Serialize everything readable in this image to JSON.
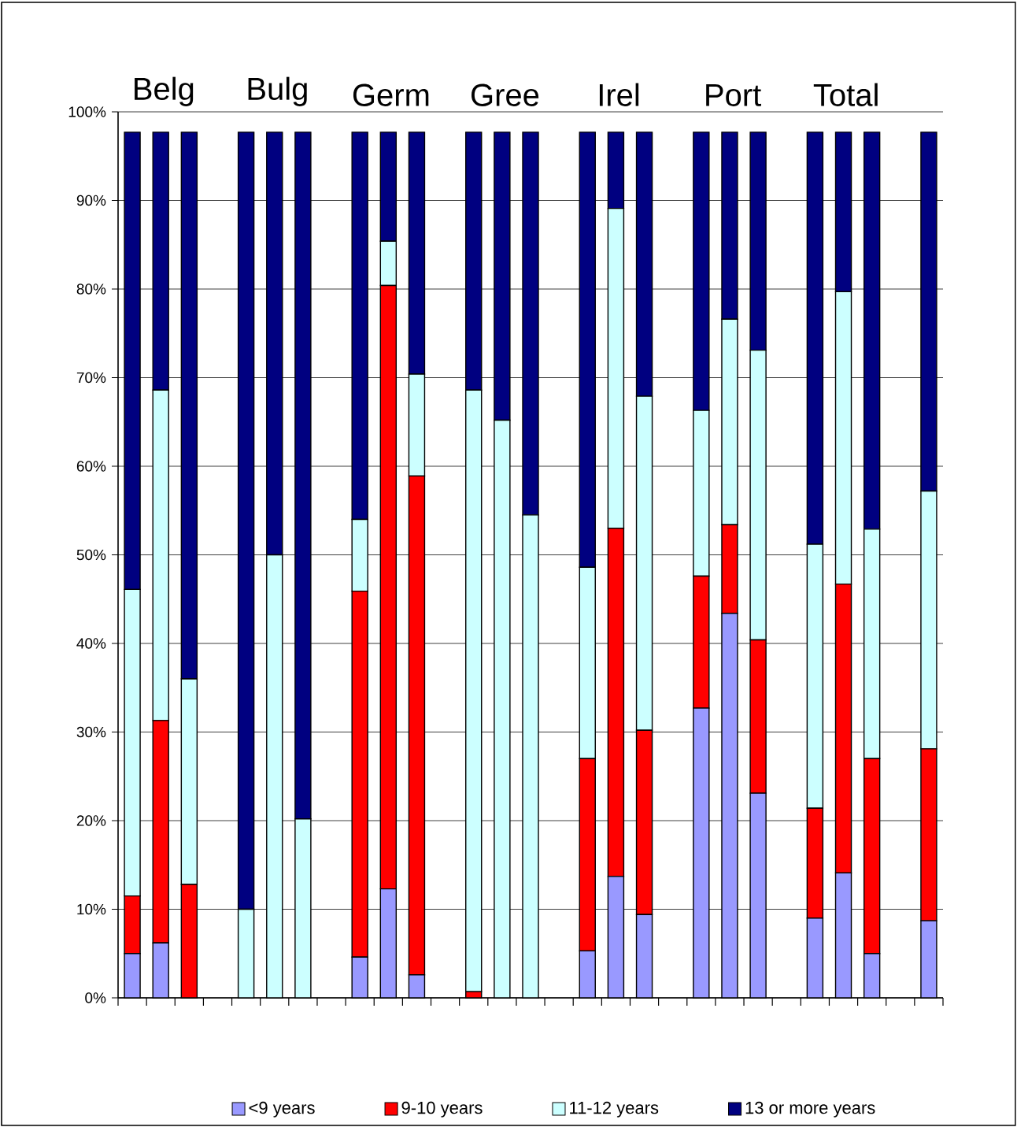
{
  "chart_data": {
    "type": "bar",
    "stacked": true,
    "categories": [
      null,
      null,
      null,
      null,
      null,
      null,
      null,
      null,
      null,
      null,
      null,
      null,
      null,
      null,
      null,
      null,
      null,
      null,
      null,
      null,
      null,
      null,
      null,
      null,
      null,
      null,
      null,
      null,
      null
    ],
    "series": [
      {
        "name": "<9 years",
        "color": "#9999ff",
        "values": [
          5.0,
          6.2,
          0,
          null,
          0,
          0,
          0,
          null,
          4.6,
          12.3,
          2.6,
          null,
          0,
          0,
          0,
          null,
          5.3,
          13.7,
          9.4,
          null,
          32.7,
          43.4,
          23.1,
          null,
          9.0,
          14.1,
          5.0,
          null,
          8.7
        ]
      },
      {
        "name": "9-10 years",
        "color": "#ff0000",
        "values": [
          6.5,
          25.1,
          12.8,
          null,
          0,
          0,
          0,
          null,
          41.3,
          68.1,
          56.3,
          null,
          0.7,
          0,
          0,
          null,
          21.7,
          39.3,
          20.8,
          null,
          14.9,
          10.0,
          17.3,
          null,
          12.4,
          32.6,
          22.0,
          null,
          19.4
        ]
      },
      {
        "name": "11-12 years",
        "color": "#ccffff",
        "values": [
          34.6,
          37.3,
          23.2,
          null,
          10.0,
          50.0,
          20.2,
          null,
          8.1,
          5.0,
          11.5,
          null,
          67.9,
          65.2,
          54.5,
          null,
          21.6,
          36.1,
          37.7,
          null,
          18.7,
          23.2,
          32.7,
          null,
          29.8,
          33.0,
          25.9,
          null,
          29.1
        ]
      },
      {
        "name": "13 or more years",
        "color": "#000080",
        "values": [
          51.6,
          29.1,
          61.7,
          null,
          87.7,
          47.7,
          77.5,
          null,
          43.7,
          12.3,
          27.3,
          null,
          29.1,
          32.5,
          43.2,
          null,
          49.1,
          8.6,
          29.8,
          null,
          31.4,
          21.1,
          24.6,
          null,
          46.5,
          18.0,
          44.8,
          null,
          40.5
        ]
      }
    ],
    "ylim": [
      0,
      100
    ],
    "yticks": [
      {
        "value": 0,
        "label": "0%"
      },
      {
        "value": 10,
        "label": "10%"
      },
      {
        "value": 20,
        "label": "20%"
      },
      {
        "value": 30,
        "label": "30%"
      },
      {
        "value": 40,
        "label": "40%"
      },
      {
        "value": 50,
        "label": "50%"
      },
      {
        "value": 60,
        "label": "60%"
      },
      {
        "value": 70,
        "label": "70%"
      },
      {
        "value": 80,
        "label": "80%"
      },
      {
        "value": 90,
        "label": "90%"
      },
      {
        "value": 100,
        "label": "100%"
      }
    ],
    "grid": "y",
    "legend": "bottom",
    "annotations": [
      "Belg",
      "Bulg",
      "Germ",
      "Gree",
      "Irel",
      "Port",
      "Total"
    ]
  }
}
